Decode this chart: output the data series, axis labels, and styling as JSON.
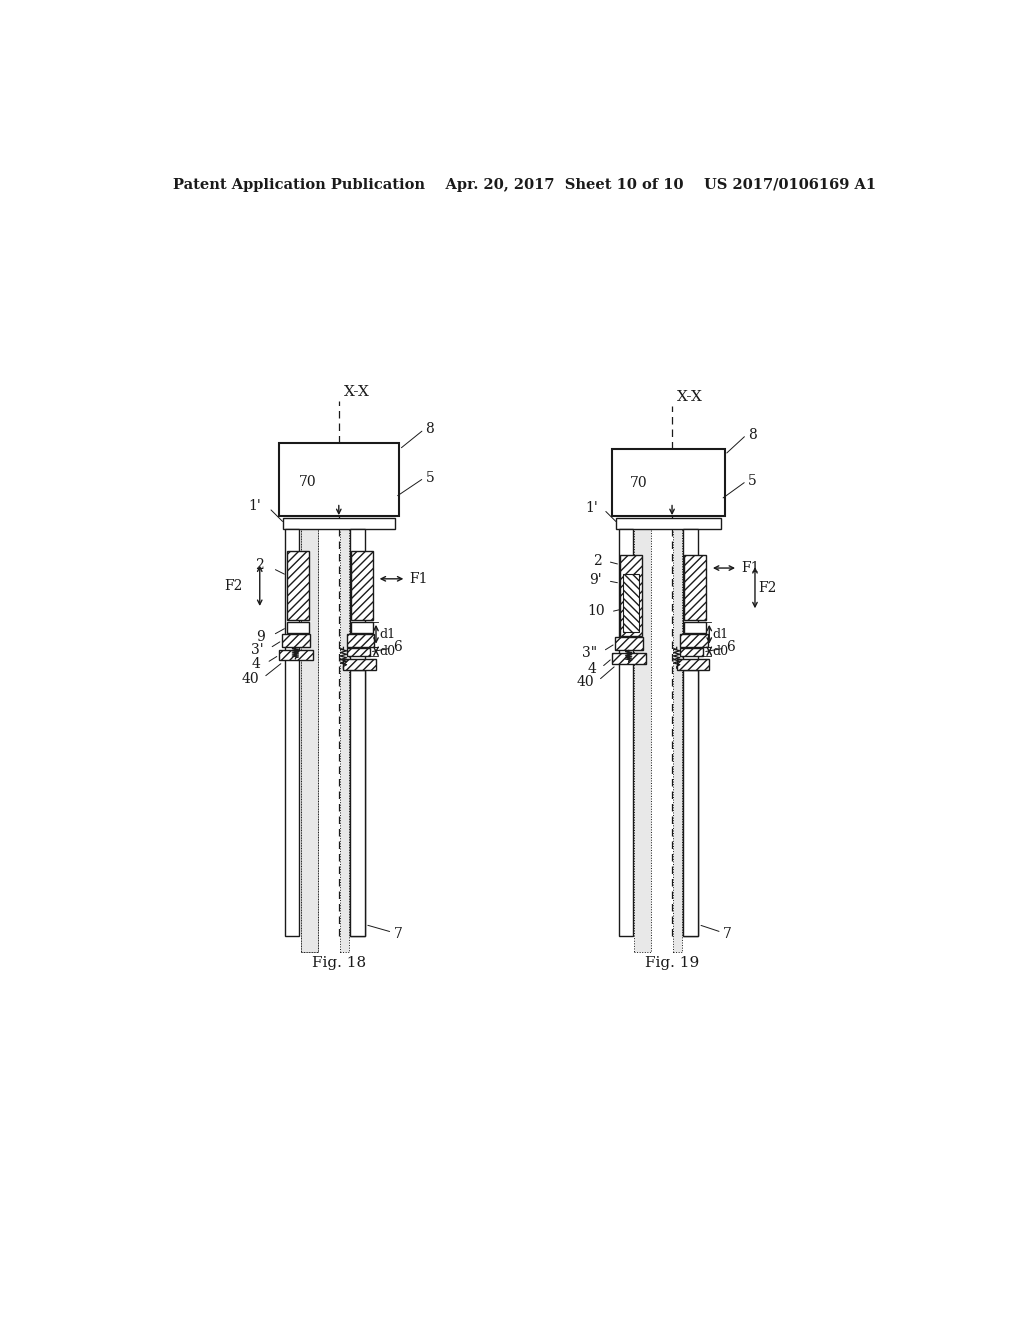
{
  "bg_color": "#ffffff",
  "lc": "#1a1a1a",
  "header": "Patent Application Publication    Apr. 20, 2017  Sheet 10 of 10    US 2017/0106169 A1",
  "fig18_caption": "Fig. 18",
  "fig19_caption": "Fig. 19"
}
